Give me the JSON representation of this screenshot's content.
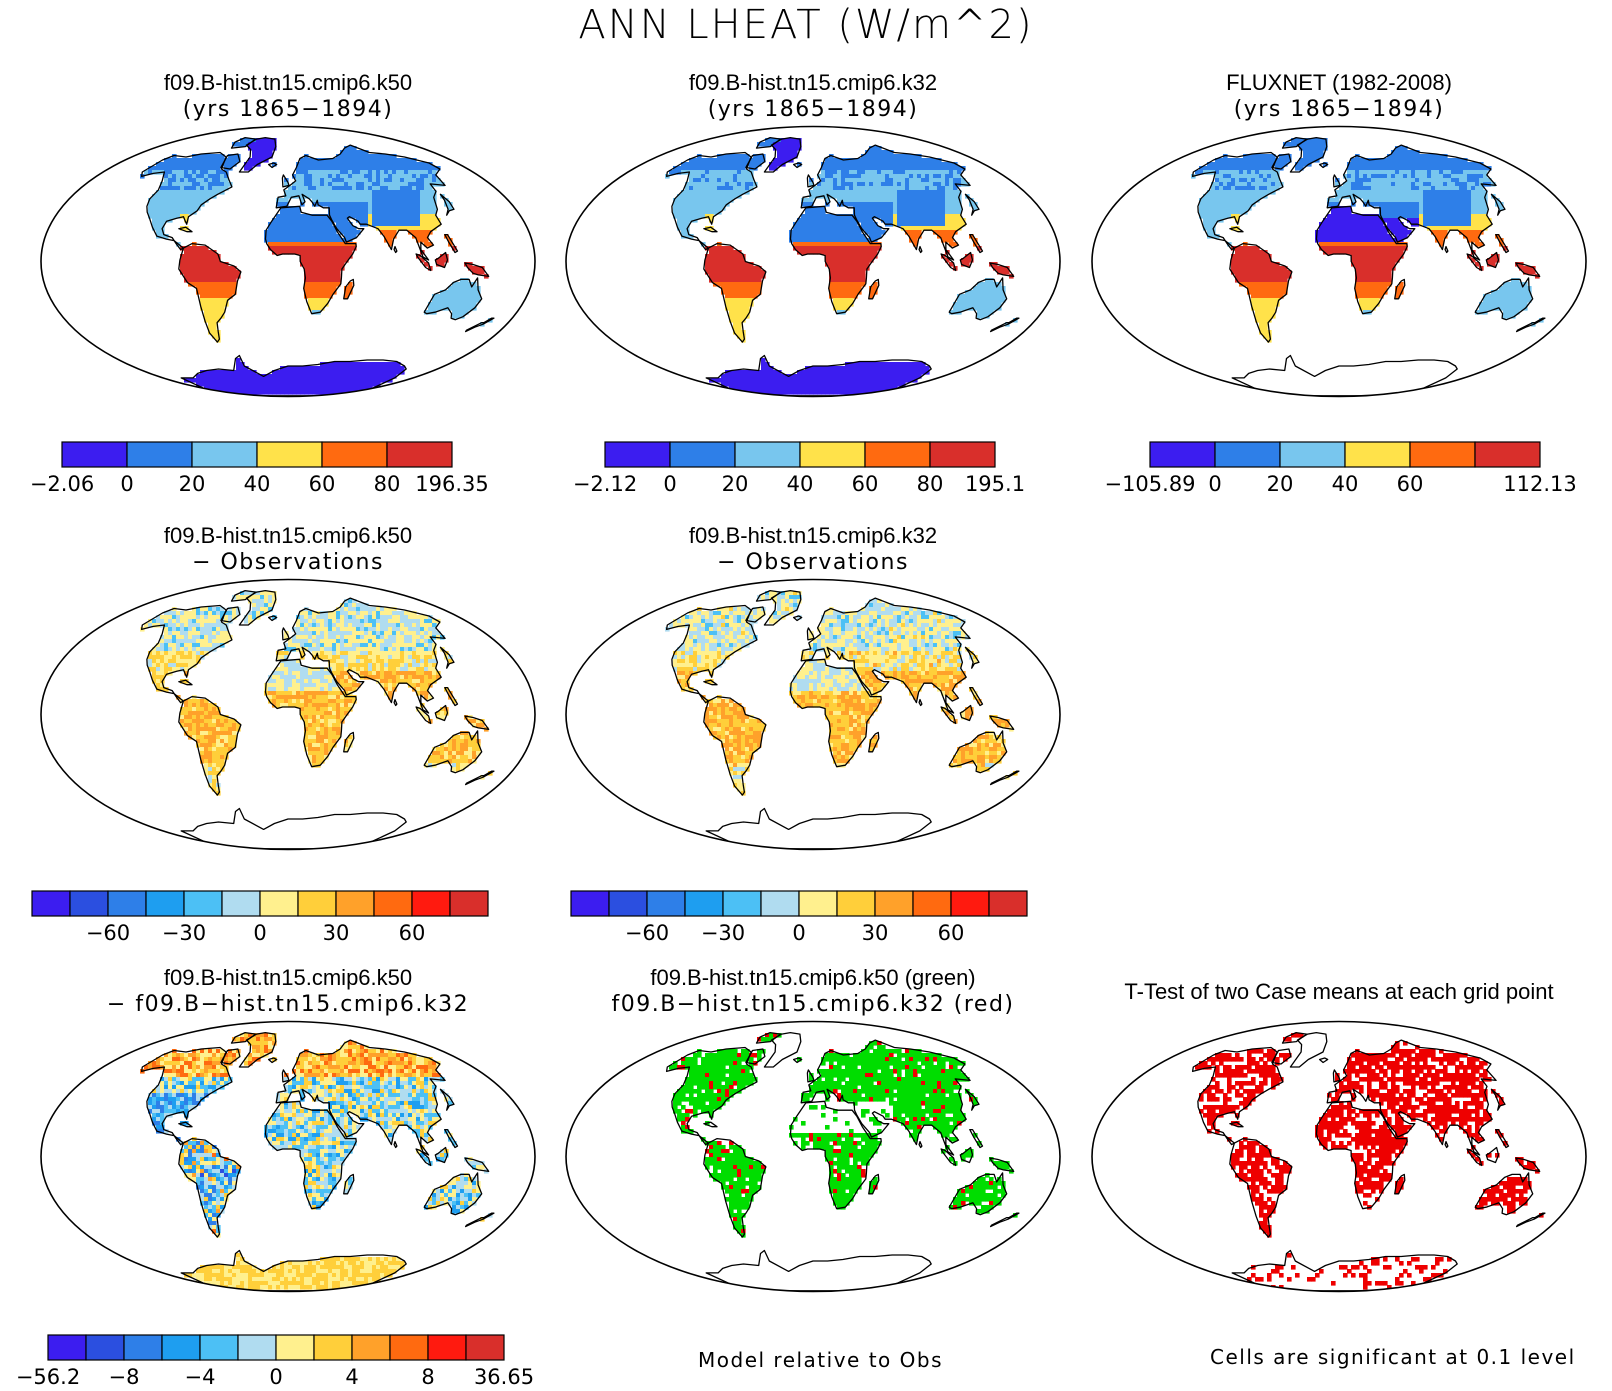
{
  "title": "ANN LHEAT (W/m^2)",
  "colors": {
    "mean": [
      "#3c1df0",
      "#2e7fe8",
      "#78c6ee",
      "#ffe24a",
      "#ff6a10",
      "#d92f2b"
    ],
    "diff12": [
      "#3c1df0",
      "#2b4fe0",
      "#2e7fe8",
      "#1e9ef0",
      "#4cc0f5",
      "#b0dcf0",
      "#fff08e",
      "#ffcf3a",
      "#ffa12a",
      "#ff6a10",
      "#ff1a0f",
      "#d92f2b"
    ],
    "sig_green": "#00dd00",
    "sig_red": "#ee0000"
  },
  "panels": [
    {
      "title": "f09.B-hist.tn15.cmip6.k50",
      "subtitle": "(yrs 1865−1894)",
      "colorbar": {
        "kind": "mean",
        "labels": [
          "−2.06",
          "0",
          "20",
          "40",
          "60",
          "80",
          "196.35"
        ]
      }
    },
    {
      "title": "f09.B-hist.tn15.cmip6.k32",
      "subtitle": "(yrs 1865−1894)",
      "colorbar": {
        "kind": "mean",
        "labels": [
          "−2.12",
          "0",
          "20",
          "40",
          "60",
          "80",
          "195.1"
        ]
      }
    },
    {
      "title": "FLUXNET (1982-2008)",
      "subtitle": "(yrs 1865−1894)",
      "colorbar": {
        "kind": "mean",
        "labels": [
          "−105.89",
          "0",
          "20",
          "40",
          "60",
          "",
          "112.13"
        ]
      }
    },
    {
      "title": "f09.B-hist.tn15.cmip6.k50",
      "subtitle": "− Observations",
      "colorbar": {
        "kind": "diff12",
        "labels": [
          "",
          "",
          "−60",
          "",
          "−30",
          "",
          "0",
          "",
          "30",
          "",
          "60",
          "",
          ""
        ]
      }
    },
    {
      "title": "f09.B-hist.tn15.cmip6.k32",
      "subtitle": "− Observations",
      "colorbar": {
        "kind": "diff12",
        "labels": [
          "",
          "",
          "−60",
          "",
          "−30",
          "",
          "0",
          "",
          "30",
          "",
          "60",
          "",
          ""
        ]
      }
    },
    {
      "title": "f09.B-hist.tn15.cmip6.k50",
      "subtitle": "− f09.B−hist.tn15.cmip6.k32",
      "colorbar": {
        "kind": "diff12",
        "labels": [
          "−56.2",
          "",
          "−8",
          "",
          "−4",
          "",
          "0",
          "",
          "4",
          "",
          "8",
          "",
          "36.65"
        ]
      }
    },
    {
      "title": "f09.B-hist.tn15.cmip6.k50 (green)",
      "subtitle": "f09.B−hist.tn15.cmip6.k32 (red)",
      "note": "Model relative to Obs"
    },
    {
      "title": "T-Test of two Case means at each grid point",
      "subtitle": "",
      "note": "Cells are significant at 0.1 level"
    }
  ]
}
